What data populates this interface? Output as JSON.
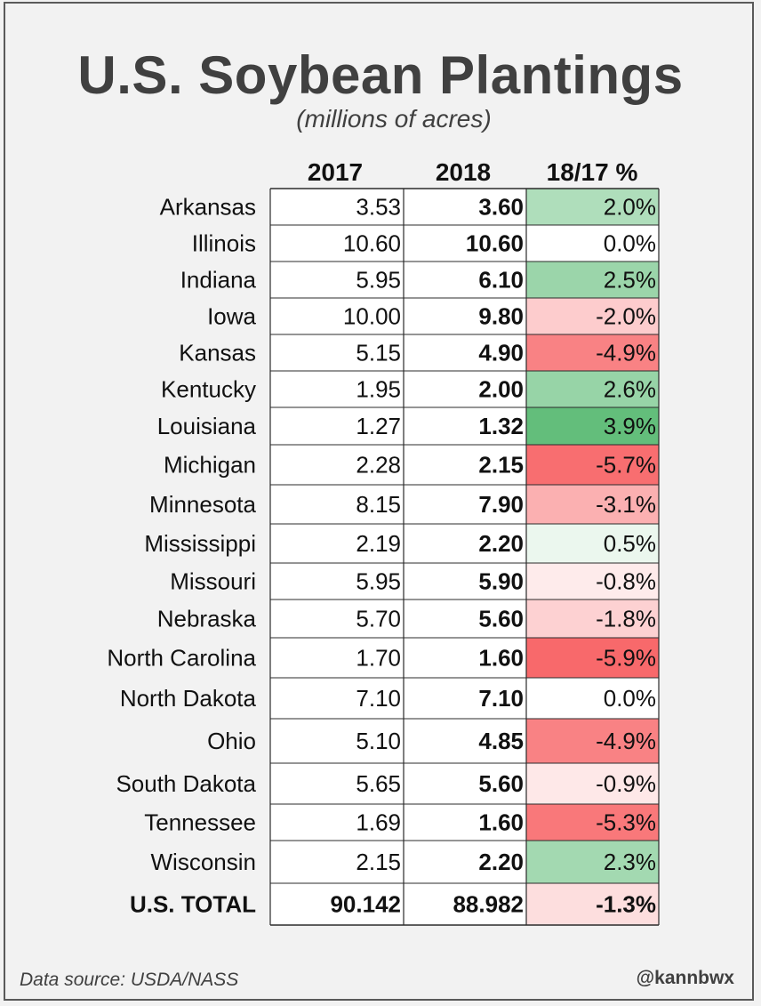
{
  "title": "U.S. Soybean Plantings",
  "subtitle": "(millions of acres)",
  "source": "Data source: USDA/NASS",
  "credit": "@kannbwx",
  "chart_data": {
    "type": "table",
    "columns": [
      "2017",
      "2018",
      "18/17 %"
    ],
    "rows": [
      {
        "state": "Arkansas",
        "y2017": "3.53",
        "y2018": "3.60",
        "pct": "2.0%",
        "change": 2.0
      },
      {
        "state": "Illinois",
        "y2017": "10.60",
        "y2018": "10.60",
        "pct": "0.0%",
        "change": 0.0
      },
      {
        "state": "Indiana",
        "y2017": "5.95",
        "y2018": "6.10",
        "pct": "2.5%",
        "change": 2.5
      },
      {
        "state": "Iowa",
        "y2017": "10.00",
        "y2018": "9.80",
        "pct": "-2.0%",
        "change": -2.0
      },
      {
        "state": "Kansas",
        "y2017": "5.15",
        "y2018": "4.90",
        "pct": "-4.9%",
        "change": -4.9
      },
      {
        "state": "Kentucky",
        "y2017": "1.95",
        "y2018": "2.00",
        "pct": "2.6%",
        "change": 2.6
      },
      {
        "state": "Louisiana",
        "y2017": "1.27",
        "y2018": "1.32",
        "pct": "3.9%",
        "change": 3.9
      },
      {
        "state": "Michigan",
        "y2017": "2.28",
        "y2018": "2.15",
        "pct": "-5.7%",
        "change": -5.7
      },
      {
        "state": "Minnesota",
        "y2017": "8.15",
        "y2018": "7.90",
        "pct": "-3.1%",
        "change": -3.1
      },
      {
        "state": "Mississippi",
        "y2017": "2.19",
        "y2018": "2.20",
        "pct": "0.5%",
        "change": 0.5
      },
      {
        "state": "Missouri",
        "y2017": "5.95",
        "y2018": "5.90",
        "pct": "-0.8%",
        "change": -0.8
      },
      {
        "state": "Nebraska",
        "y2017": "5.70",
        "y2018": "5.60",
        "pct": "-1.8%",
        "change": -1.8
      },
      {
        "state": "North Carolina",
        "y2017": "1.70",
        "y2018": "1.60",
        "pct": "-5.9%",
        "change": -5.9
      },
      {
        "state": "North Dakota",
        "y2017": "7.10",
        "y2018": "7.10",
        "pct": "0.0%",
        "change": 0.0
      },
      {
        "state": "Ohio",
        "y2017": "5.10",
        "y2018": "4.85",
        "pct": "-4.9%",
        "change": -4.9
      },
      {
        "state": "South Dakota",
        "y2017": "5.65",
        "y2018": "5.60",
        "pct": "-0.9%",
        "change": -0.9
      },
      {
        "state": "Tennessee",
        "y2017": "1.69",
        "y2018": "1.60",
        "pct": "-5.3%",
        "change": -5.3
      },
      {
        "state": "Wisconsin",
        "y2017": "2.15",
        "y2018": "2.20",
        "pct": "2.3%",
        "change": 2.3
      }
    ],
    "total": {
      "state": "U.S. TOTAL",
      "y2017": "90.142",
      "y2018": "88.982",
      "pct": "-1.3%",
      "change": -1.3
    },
    "colors": {
      "positive": "#63be7b",
      "negative": "#f8696b",
      "neutral": "#ffffff"
    }
  }
}
